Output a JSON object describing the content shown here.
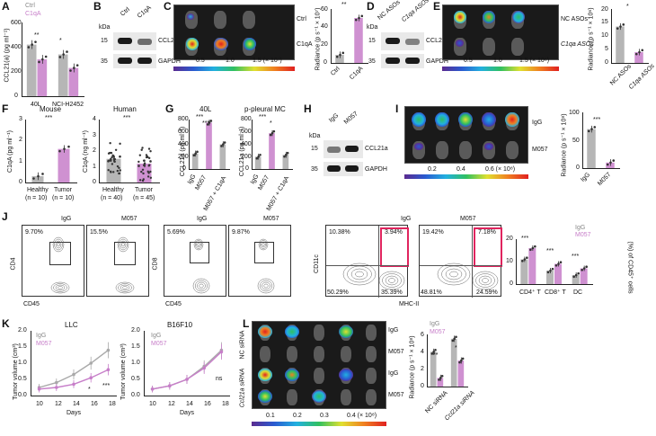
{
  "panels": {
    "A": {
      "label": "A",
      "legend": [
        "Ctrl",
        "C1qA"
      ],
      "ylabel": "CCL21(a) (pg ml⁻¹)",
      "yticks": [
        "0",
        "200",
        "400",
        "600"
      ],
      "categories": [
        "40L",
        "NCI-H2452"
      ],
      "sig": [
        "**",
        "*"
      ]
    },
    "B": {
      "label": "B",
      "kda": "kDa",
      "lanes": [
        "Ctrl",
        "C1qA"
      ],
      "markers": [
        "15",
        "35"
      ],
      "proteins": [
        "CCL21a",
        "GAPDH"
      ]
    },
    "C": {
      "label": "C",
      "rows": [
        "Ctrl",
        "C1qA"
      ],
      "scale": [
        "0.5",
        "1.0",
        "1.5 (× 10⁷)"
      ],
      "ylabel": "Radiance (p s⁻¹ × 10⁷)",
      "yticks": [
        "0",
        "20",
        "40",
        "60"
      ],
      "cats": [
        "Ctrl",
        "C1qA"
      ],
      "sig": "**"
    },
    "D": {
      "label": "D",
      "kda": "kDa",
      "lanes": [
        "NC ASOs",
        "C1qa ASOs"
      ],
      "markers": [
        "15",
        "35"
      ],
      "proteins": [
        "CCL21a",
        "GAPDH"
      ]
    },
    "E": {
      "label": "E",
      "rows": [
        "NC ASOs",
        "C1qa ASOs"
      ],
      "scale": [
        "0.5",
        "1.0",
        "1.5 (× 10⁶)"
      ],
      "ylabel": "Radiance (p s⁻¹ × 10⁶)",
      "yticks": [
        "0",
        "5",
        "10",
        "15",
        "20"
      ],
      "cats": [
        "NC ASOs",
        "C1qa ASOs"
      ],
      "sig": "*"
    },
    "F": {
      "label": "F",
      "titles": [
        "Mouse",
        "Human"
      ],
      "ylabels": [
        "C1qA (pg ml⁻¹)",
        "C1qA (ng ml⁻¹)"
      ],
      "yticks_mouse": [
        "0",
        "1",
        "2",
        "3"
      ],
      "yticks_human": [
        "0",
        "1",
        "2",
        "3",
        "4"
      ],
      "cats_mouse": [
        "Healthy",
        "Tumor"
      ],
      "n_mouse": [
        "(n = 10)",
        "(n = 10)"
      ],
      "cats_human": [
        "Healthy",
        "Tumor"
      ],
      "n_human": [
        "(n = 40)",
        "(n = 45)"
      ],
      "sig": [
        "***",
        "***"
      ]
    },
    "G": {
      "label": "G",
      "titles": [
        "40L",
        "p-pleural MC"
      ],
      "ylabel": "CCL21a (pg ml⁻¹)",
      "yticks": [
        "0",
        "200",
        "400",
        "600",
        "800"
      ],
      "cats": [
        "IgG",
        "M057",
        "M057 + C1qA"
      ],
      "sig": [
        "***",
        "***",
        "***",
        "*"
      ]
    },
    "H": {
      "label": "H",
      "kda": "kDa",
      "lanes": [
        "IgG",
        "M057"
      ],
      "markers": [
        "15",
        "35"
      ],
      "proteins": [
        "CCL21a",
        "GAPDH"
      ]
    },
    "I": {
      "label": "I",
      "rows": [
        "IgG",
        "M057"
      ],
      "scale": [
        "0.2",
        "0.4",
        "0.6 (× 10⁸)"
      ],
      "ylabel": "Radiance (p s⁻¹ × 10⁸)",
      "yticks": [
        "0",
        "50",
        "100"
      ],
      "cats": [
        "IgG",
        "M057"
      ],
      "sig": "***"
    },
    "J": {
      "label": "J",
      "headers": [
        "IgG",
        "M057",
        "IgG",
        "M057",
        "IgG",
        "M057"
      ],
      "pcts_cd4": [
        "9.70%",
        "15.5%"
      ],
      "pcts_cd8": [
        "5.69%",
        "9.87%"
      ],
      "pcts_dc_igg": [
        "10.38%",
        "3.94%",
        "50.29%",
        "35.39%"
      ],
      "pcts_dc_m057": [
        "19.42%",
        "7.18%",
        "48.81%",
        "24.59%"
      ],
      "axes": {
        "cd4": "CD4",
        "cd45": "CD45",
        "cd8": "CD8",
        "cd11c": "CD11c",
        "mhc": "MHC-II"
      },
      "bar_legend": [
        "IgG",
        "M057"
      ],
      "bar_ylabel": "(%) of CD45⁺ cells",
      "bar_yticks": [
        "0",
        "10",
        "20"
      ],
      "bar_cats": [
        "CD4⁺ T",
        "CD8⁺ T",
        "DC"
      ],
      "sig": [
        "***",
        "***",
        "***"
      ]
    },
    "K": {
      "label": "K",
      "titles": [
        "LLC",
        "B16F10"
      ],
      "legend": [
        "IgG",
        "M057"
      ],
      "ylabel": "Tumor volume (cm³)",
      "yticks": [
        "0.0",
        "0.5",
        "1.0",
        "1.5",
        "2.0"
      ],
      "xticks": [
        "10",
        "12",
        "14",
        "16",
        "18"
      ],
      "xlabel": "Days",
      "sig": [
        "*",
        "***",
        "ns"
      ]
    },
    "L": {
      "label": "L",
      "rowlabels": [
        "IgG",
        "M057",
        "IgG",
        "M057"
      ],
      "grouplabels": [
        "NC siRNA",
        "Ccl21a siRNA"
      ],
      "scale": [
        "0.1",
        "0.2",
        "0.3",
        "0.4 (× 10⁸)"
      ],
      "legend": [
        "IgG",
        "M057"
      ],
      "ylabel": "Radiance (p s⁻¹ × 10⁸)",
      "yticks": [
        "0",
        "2",
        "4",
        "6"
      ],
      "cats": [
        "NC siRNA",
        "Ccl21a siRNA"
      ],
      "sig": [
        "**",
        "*"
      ]
    }
  },
  "colors": {
    "ctrl": "#a9a9a9",
    "treat": "#c77ec9",
    "red_gate": "#e0245e"
  },
  "chart_data": [
    {
      "type": "bar",
      "panel": "A",
      "categories": [
        "40L",
        "NCI-H2452"
      ],
      "series": [
        {
          "name": "Ctrl",
          "values": [
            420,
            340
          ]
        },
        {
          "name": "C1qA",
          "values": [
            300,
            230
          ]
        }
      ],
      "ylim": [
        0,
        600
      ],
      "ylabel": "CCL21(a) (pg ml⁻¹)"
    },
    {
      "type": "bar",
      "panel": "C",
      "categories": [
        "Ctrl",
        "C1qA"
      ],
      "values": [
        9,
        50
      ],
      "ylim": [
        0,
        60
      ]
    },
    {
      "type": "bar",
      "panel": "E",
      "categories": [
        "NC ASOs",
        "C1qa ASOs"
      ],
      "values": [
        13.5,
        4
      ],
      "ylim": [
        0,
        20
      ]
    },
    {
      "type": "bar",
      "panel": "F-mouse",
      "categories": [
        "Healthy",
        "Tumor"
      ],
      "values": [
        0.3,
        1.6
      ],
      "ylim": [
        0,
        3
      ]
    },
    {
      "type": "bar",
      "panel": "F-human",
      "categories": [
        "Healthy",
        "Tumor"
      ],
      "values": [
        1.5,
        1.2
      ],
      "ylim": [
        0,
        4
      ]
    },
    {
      "type": "bar",
      "panel": "G-40L",
      "categories": [
        "IgG",
        "M057",
        "M057 + C1qA"
      ],
      "values": [
        250,
        750,
        400
      ],
      "ylim": [
        0,
        800
      ]
    },
    {
      "type": "bar",
      "panel": "G-pMC",
      "categories": [
        "IgG",
        "M057",
        "M057 + C1qA"
      ],
      "values": [
        200,
        580,
        230
      ],
      "ylim": [
        0,
        800
      ]
    },
    {
      "type": "bar",
      "panel": "I",
      "categories": [
        "IgG",
        "M057"
      ],
      "values": [
        70,
        10
      ],
      "ylim": [
        0,
        100
      ]
    },
    {
      "type": "bar",
      "panel": "J",
      "categories": [
        "CD4⁺ T",
        "CD8⁺ T",
        "DC"
      ],
      "series": [
        {
          "name": "IgG",
          "values": [
            11,
            6,
            4
          ]
        },
        {
          "name": "M057",
          "values": [
            16,
            9,
            7
          ]
        }
      ],
      "ylim": [
        0,
        20
      ]
    },
    {
      "type": "line",
      "panel": "K-LLC",
      "x": [
        10,
        12,
        14,
        16,
        18
      ],
      "series": [
        {
          "name": "IgG",
          "values": [
            0.25,
            0.4,
            0.65,
            1.0,
            1.4
          ]
        },
        {
          "name": "M057",
          "values": [
            0.2,
            0.25,
            0.35,
            0.55,
            0.8
          ]
        }
      ],
      "ylim": [
        0,
        2
      ]
    },
    {
      "type": "line",
      "panel": "K-B16F10",
      "x": [
        10,
        12,
        14,
        16,
        18
      ],
      "series": [
        {
          "name": "IgG",
          "values": [
            0.2,
            0.3,
            0.5,
            0.9,
            1.4
          ]
        },
        {
          "name": "M057",
          "values": [
            0.2,
            0.3,
            0.5,
            0.85,
            1.35
          ]
        }
      ],
      "ylim": [
        0,
        2
      ]
    },
    {
      "type": "bar",
      "panel": "L",
      "categories": [
        "NC siRNA",
        "Ccl21a siRNA"
      ],
      "series": [
        {
          "name": "IgG",
          "values": [
            4,
            5.5
          ]
        },
        {
          "name": "M057",
          "values": [
            1,
            3
          ]
        }
      ],
      "ylim": [
        0,
        6
      ]
    }
  ]
}
